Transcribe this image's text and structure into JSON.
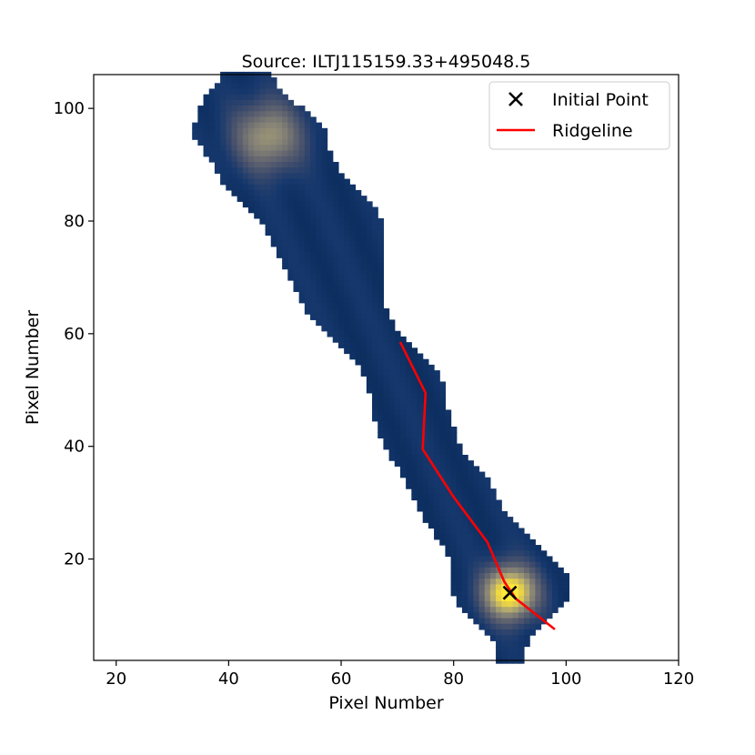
{
  "chart_data": {
    "type": "heatmap",
    "title": "Source: ILTJ115159.33+495048.5",
    "xlabel": "Pixel Number",
    "ylabel": "Pixel Number",
    "xlim": [
      16,
      120
    ],
    "ylim": [
      2,
      106
    ],
    "xticks": [
      "20",
      "40",
      "60",
      "80",
      "100",
      "120"
    ],
    "yticks": [
      "20",
      "40",
      "60",
      "80",
      "100"
    ],
    "grid": false,
    "legend_position": "top-right",
    "colormap": "cividis",
    "image": {
      "description_rows": [
        [
          106,
          39,
          47
        ],
        [
          105,
          39,
          48
        ],
        [
          104,
          38,
          48
        ],
        [
          103,
          37,
          49
        ],
        [
          102,
          36,
          50
        ],
        [
          101,
          36,
          51
        ],
        [
          100,
          35,
          53
        ],
        [
          99,
          35,
          54
        ],
        [
          98,
          35,
          55
        ],
        [
          97,
          34,
          56
        ],
        [
          96,
          34,
          57
        ],
        [
          95,
          34,
          57
        ],
        [
          94,
          35,
          57
        ],
        [
          93,
          36,
          57
        ],
        [
          92,
          36,
          58
        ],
        [
          91,
          37,
          58
        ],
        [
          90,
          38,
          59
        ],
        [
          89,
          38,
          59
        ],
        [
          88,
          39,
          60
        ],
        [
          87,
          39,
          61
        ],
        [
          86,
          40,
          62
        ],
        [
          85,
          41,
          63
        ],
        [
          84,
          42,
          64
        ],
        [
          83,
          43,
          65
        ],
        [
          82,
          44,
          66
        ],
        [
          81,
          45,
          66
        ],
        [
          80,
          46,
          67
        ],
        [
          79,
          47,
          67
        ],
        [
          78,
          47,
          67
        ],
        [
          77,
          48,
          67
        ],
        [
          76,
          48,
          67
        ],
        [
          75,
          49,
          67
        ],
        [
          74,
          49,
          67
        ],
        [
          73,
          50,
          67
        ],
        [
          72,
          50,
          67
        ],
        [
          71,
          51,
          67
        ],
        [
          70,
          51,
          67
        ],
        [
          69,
          52,
          67
        ],
        [
          68,
          52,
          67
        ],
        [
          67,
          53,
          67
        ],
        [
          66,
          53,
          67
        ],
        [
          65,
          54,
          67
        ],
        [
          64,
          54,
          68
        ],
        [
          63,
          55,
          68
        ],
        [
          62,
          56,
          69
        ],
        [
          61,
          57,
          69
        ],
        [
          60,
          58,
          70
        ],
        [
          59,
          59,
          71
        ],
        [
          58,
          60,
          72
        ],
        [
          57,
          61,
          73
        ],
        [
          56,
          62,
          74
        ],
        [
          55,
          63,
          75
        ],
        [
          54,
          64,
          76
        ],
        [
          53,
          64,
          77
        ],
        [
          52,
          65,
          77
        ],
        [
          51,
          65,
          78
        ],
        [
          50,
          65,
          78
        ],
        [
          49,
          66,
          78
        ],
        [
          48,
          66,
          78
        ],
        [
          47,
          66,
          78
        ],
        [
          46,
          66,
          79
        ],
        [
          45,
          66,
          79
        ],
        [
          44,
          67,
          79
        ],
        [
          43,
          67,
          80
        ],
        [
          42,
          67,
          80
        ],
        [
          41,
          68,
          80
        ],
        [
          40,
          68,
          81
        ],
        [
          39,
          69,
          81
        ],
        [
          38,
          69,
          82
        ],
        [
          37,
          70,
          83
        ],
        [
          36,
          71,
          84
        ],
        [
          35,
          71,
          85
        ],
        [
          34,
          72,
          86
        ],
        [
          33,
          72,
          86
        ],
        [
          32,
          73,
          87
        ],
        [
          31,
          73,
          87
        ],
        [
          30,
          74,
          88
        ],
        [
          29,
          74,
          88
        ],
        [
          28,
          75,
          89
        ],
        [
          27,
          75,
          90
        ],
        [
          26,
          76,
          91
        ],
        [
          25,
          77,
          92
        ],
        [
          24,
          77,
          93
        ],
        [
          23,
          78,
          94
        ],
        [
          22,
          79,
          95
        ],
        [
          21,
          79,
          96
        ],
        [
          20,
          80,
          97
        ],
        [
          19,
          80,
          98
        ],
        [
          18,
          80,
          99
        ],
        [
          17,
          80,
          100
        ],
        [
          16,
          80,
          100
        ],
        [
          15,
          80,
          100
        ],
        [
          14,
          80,
          100
        ],
        [
          13,
          81,
          100
        ],
        [
          12,
          81,
          99
        ],
        [
          11,
          82,
          98
        ],
        [
          10,
          83,
          97
        ],
        [
          9,
          84,
          96
        ],
        [
          8,
          85,
          95
        ],
        [
          7,
          86,
          94
        ],
        [
          6,
          87,
          93
        ],
        [
          5,
          88,
          93
        ],
        [
          4,
          88,
          92
        ],
        [
          3,
          88,
          92
        ],
        [
          2,
          88,
          92
        ]
      ],
      "peaks": [
        {
          "x": 90,
          "y": 14,
          "amplitude": 1.0,
          "sigma": 3.2
        },
        {
          "x": 47,
          "y": 95,
          "amplitude": 0.55,
          "sigma": 4.2
        }
      ],
      "background_level": 0.12
    },
    "series": [
      {
        "name": "Initial Point",
        "type": "scatter",
        "marker": "x",
        "color": "#000000",
        "x": [
          90
        ],
        "y": [
          14
        ]
      },
      {
        "name": "Ridgeline",
        "type": "line",
        "color": "#ff0000",
        "x": [
          70.5,
          75,
          74.5,
          80,
          86,
          89,
          91,
          98
        ],
        "y": [
          58.5,
          49.5,
          39.5,
          31,
          23,
          16,
          13,
          7.5
        ]
      }
    ]
  }
}
